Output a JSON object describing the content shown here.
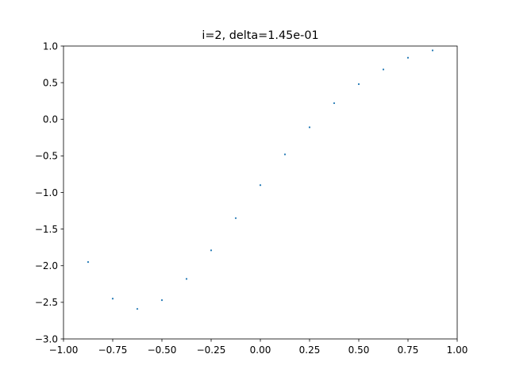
{
  "chart_data": {
    "type": "scatter",
    "title": "i=2, delta=1.45e-01",
    "xlabel": "",
    "ylabel": "",
    "xlim": [
      -1.0,
      1.0
    ],
    "ylim": [
      -3.0,
      1.0
    ],
    "grid": false,
    "x_ticks": [
      "−1.00",
      "−0.75",
      "−0.50",
      "−0.25",
      "0.00",
      "0.25",
      "0.50",
      "0.75",
      "1.00"
    ],
    "x_tick_values": [
      -1.0,
      -0.75,
      -0.5,
      -0.25,
      0.0,
      0.25,
      0.5,
      0.75,
      1.0
    ],
    "y_ticks": [
      "−3.0",
      "−2.5",
      "−2.0",
      "−1.5",
      "−1.0",
      "−0.5",
      "0.0",
      "0.5",
      "1.0"
    ],
    "y_tick_values": [
      -3.0,
      -2.5,
      -2.0,
      -1.5,
      -1.0,
      -0.5,
      0.0,
      0.5,
      1.0
    ],
    "marker_color": "#1f77b4",
    "series": [
      {
        "x": [
          -0.875,
          -0.75,
          -0.625,
          -0.5,
          -0.375,
          -0.25,
          -0.125,
          0.0,
          0.125,
          0.25,
          0.375,
          0.5,
          0.625,
          0.75,
          0.875
        ],
        "y": [
          -1.95,
          -2.45,
          -2.59,
          -2.47,
          -2.18,
          -1.79,
          -1.35,
          -0.9,
          -0.48,
          -0.11,
          0.22,
          0.48,
          0.68,
          0.84,
          0.94
        ]
      }
    ]
  }
}
